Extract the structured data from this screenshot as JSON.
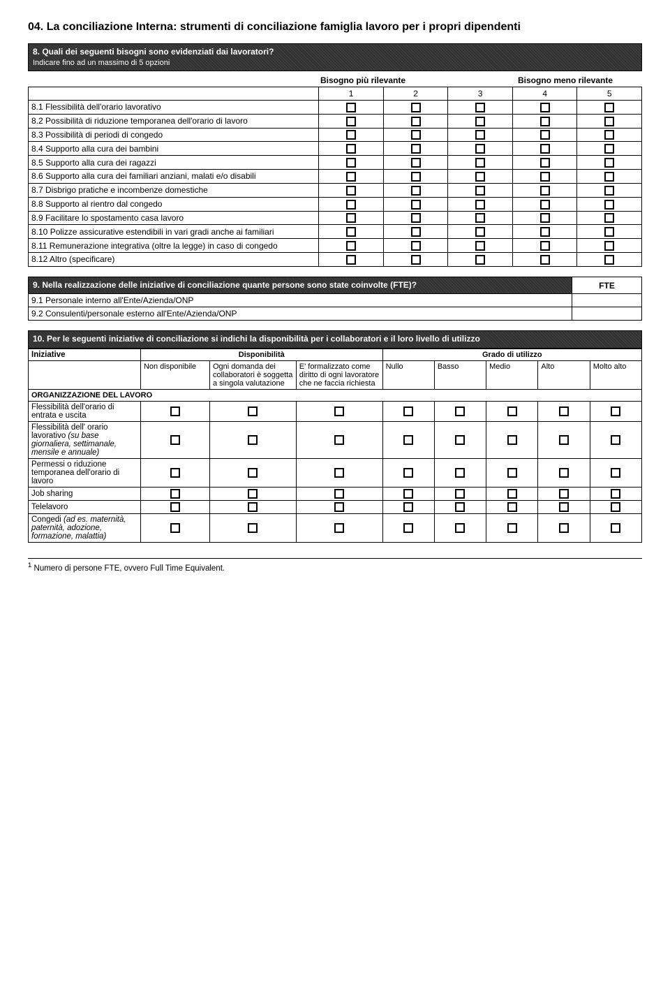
{
  "page": {
    "title": "04. La conciliazione Interna: strumenti di conciliazione famiglia lavoro per i propri dipendenti",
    "footnote_marker": "1",
    "footnote_text": "Numero di persone FTE, ovvero Full Time Equivalent."
  },
  "q8": {
    "header_main": "8. Quali dei seguenti bisogni sono evidenziati dai lavoratori?",
    "header_sub": "Indicare fino ad un massimo di 5 opzioni",
    "col_left": "Bisogno più rilevante",
    "col_right": "Bisogno meno rilevante",
    "scale": [
      "1",
      "2",
      "3",
      "4",
      "5"
    ],
    "rows": [
      "8.1 Flessibilità dell'orario lavorativo",
      "8.2 Possibilità di riduzione temporanea dell'orario di lavoro",
      "8.3 Possibilità di periodi di congedo",
      "8.4 Supporto alla cura dei bambini",
      "8.5 Supporto alla cura dei ragazzi",
      "8.6 Supporto alla cura dei familiari anziani, malati e/o disabili",
      "8.7 Disbrigo pratiche e incombenze domestiche",
      "8.8 Supporto al rientro dal congedo",
      "8.9 Facilitare lo spostamento casa lavoro",
      "8.10 Polizze assicurative estendibili in vari gradi anche ai familiari",
      "8.11 Remunerazione integrativa (oltre la legge) in caso di congedo",
      "8.12 Altro (specificare)"
    ]
  },
  "q9": {
    "header_main": "9. Nella realizzazione delle iniziative di conciliazione quante persone sono state coinvolte (FTE)?",
    "col_fte": "FTE",
    "rows": [
      "9.1 Personale interno all'Ente/Azienda/ONP",
      "9.2 Consulenti/personale esterno all'Ente/Azienda/ONP"
    ]
  },
  "q10": {
    "header_main": "10. Per le seguenti iniziative di conciliazione si indichi la disponibilità per i collaboratori e il loro livello di utilizzo",
    "col_iniziative": "Iniziative",
    "col_disponibilita": "Disponibilità",
    "col_grado": "Grado di utilizzo",
    "disp_cols": [
      "Non disponibile",
      "Ogni domanda dei collaboratori è soggetta a singola valutazione",
      "E' formalizzato come diritto di ogni lavoratore che ne faccia richiesta"
    ],
    "grado_cols": [
      "Nullo",
      "Basso",
      "Medio",
      "Alto",
      "Molto alto"
    ],
    "section_org": "ORGANIZZAZIONE DEL LAVORO",
    "rows": [
      {
        "label": "Flessibilità dell'orario di entrata e uscita",
        "ital": ""
      },
      {
        "label": "Flessibilità dell' orario lavorativo",
        "ital": "(su base giornaliera, settimanale, mensile e annuale)"
      },
      {
        "label": "Permessi o riduzione temporanea dell'orario di lavoro",
        "ital": ""
      },
      {
        "label": "Job sharing",
        "ital": ""
      },
      {
        "label": "Telelavoro",
        "ital": ""
      },
      {
        "label": "Congedi",
        "ital": "(ad es. maternità, paternità, adozione, formazione, malattia)"
      }
    ]
  },
  "colors": {
    "header_bg": "#333333",
    "header_fg": "#ffffff",
    "border": "#000000",
    "page_bg": "#ffffff"
  }
}
